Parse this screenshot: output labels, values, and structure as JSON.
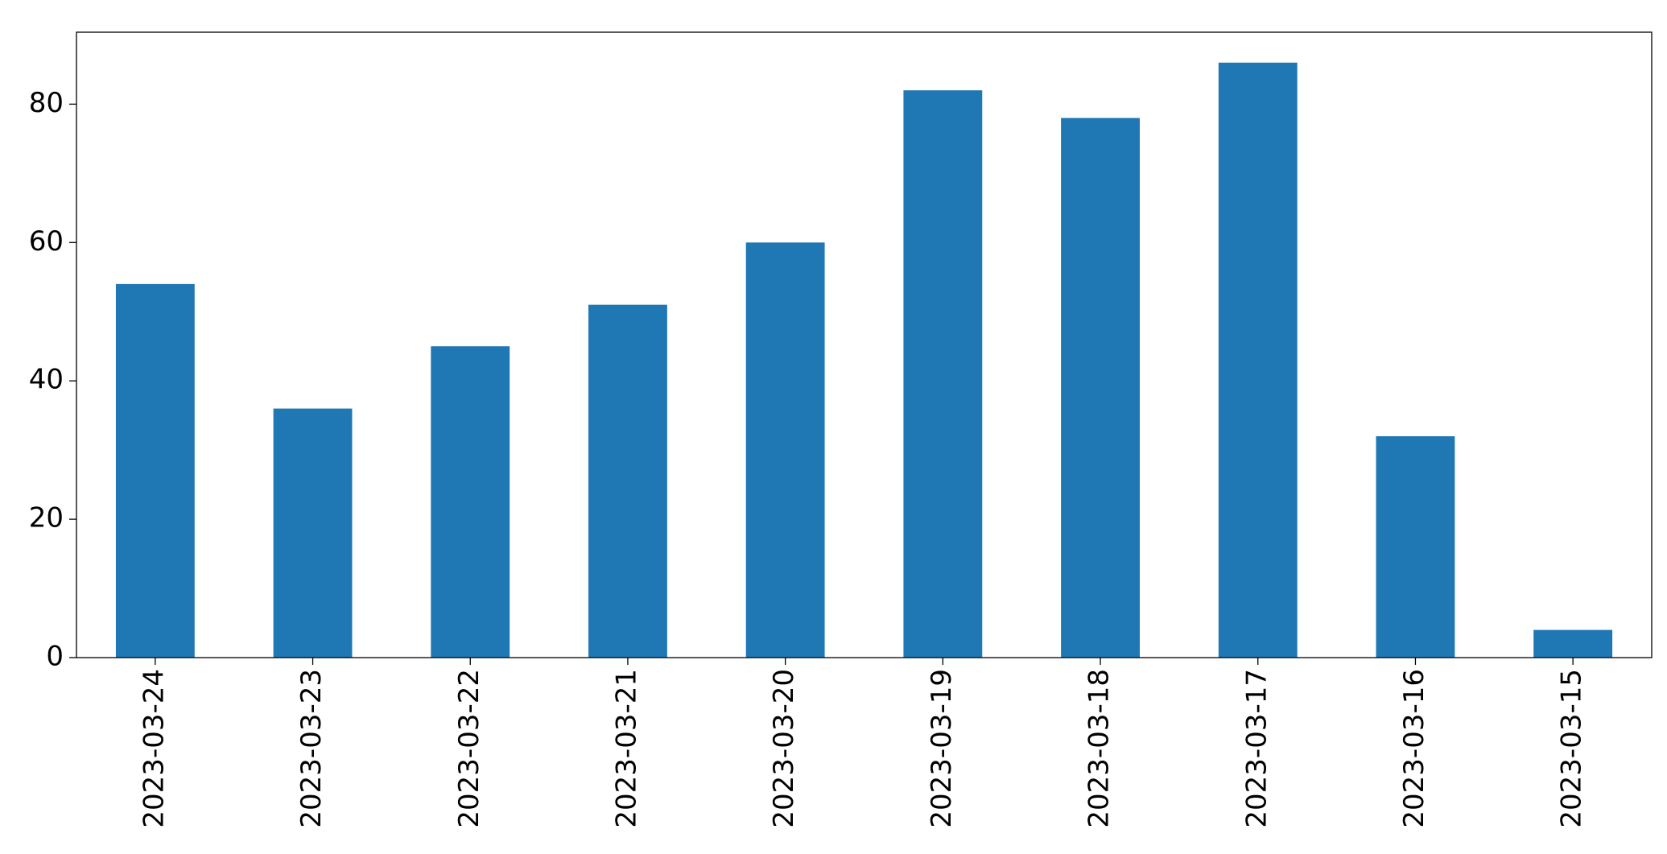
{
  "chart_data": {
    "type": "bar",
    "categories": [
      "2023-03-24",
      "2023-03-23",
      "2023-03-22",
      "2023-03-21",
      "2023-03-20",
      "2023-03-19",
      "2023-03-18",
      "2023-03-17",
      "2023-03-16",
      "2023-03-15"
    ],
    "values": [
      54,
      36,
      45,
      51,
      60,
      82,
      78,
      86,
      32,
      4
    ],
    "color": "#1f77b4",
    "ylim": [
      0,
      90.4
    ],
    "yticks": [
      0,
      20,
      40,
      60,
      80
    ],
    "grid": false
  }
}
